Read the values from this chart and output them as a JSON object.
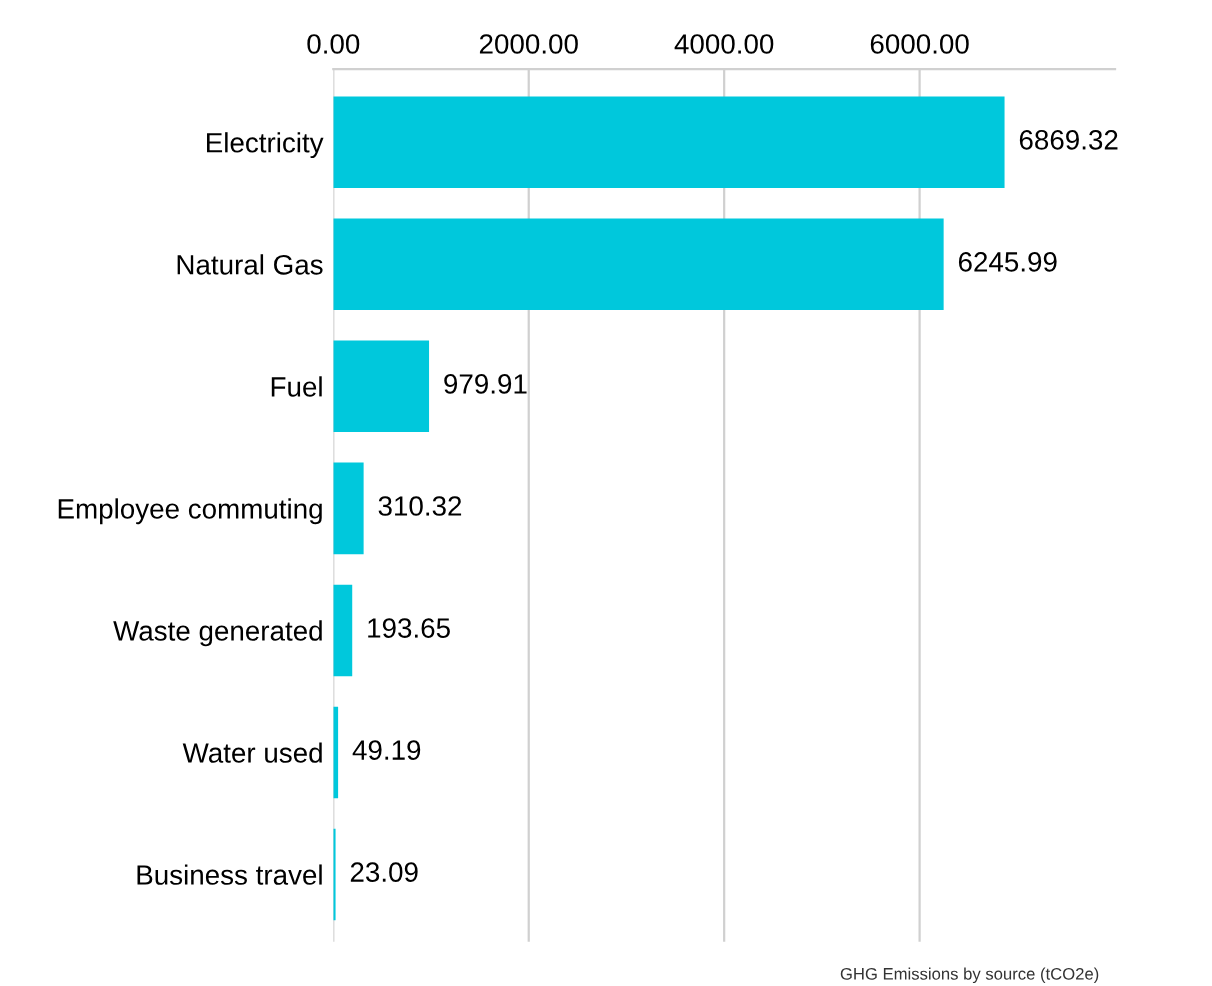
{
  "chart_data": {
    "type": "bar",
    "orientation": "horizontal",
    "categories": [
      "Electricity",
      "Natural Gas",
      "Fuel",
      "Employee commuting",
      "Waste generated",
      "Water used",
      "Business travel"
    ],
    "values": [
      6869.32,
      6245.99,
      979.91,
      310.32,
      193.65,
      49.19,
      23.09
    ],
    "color": "#00c8dc",
    "data_labels": true,
    "xlim": [
      0,
      8000
    ],
    "xticks": [
      {
        "value": 0,
        "label": "0.00"
      },
      {
        "value": 2000,
        "label": "2000.00"
      },
      {
        "value": 4000,
        "label": "4000.00"
      },
      {
        "value": 6000,
        "label": "6000.00"
      }
    ],
    "grid": "x",
    "annotations": [
      "GHG Emissions by source (tCO2e)"
    ]
  }
}
